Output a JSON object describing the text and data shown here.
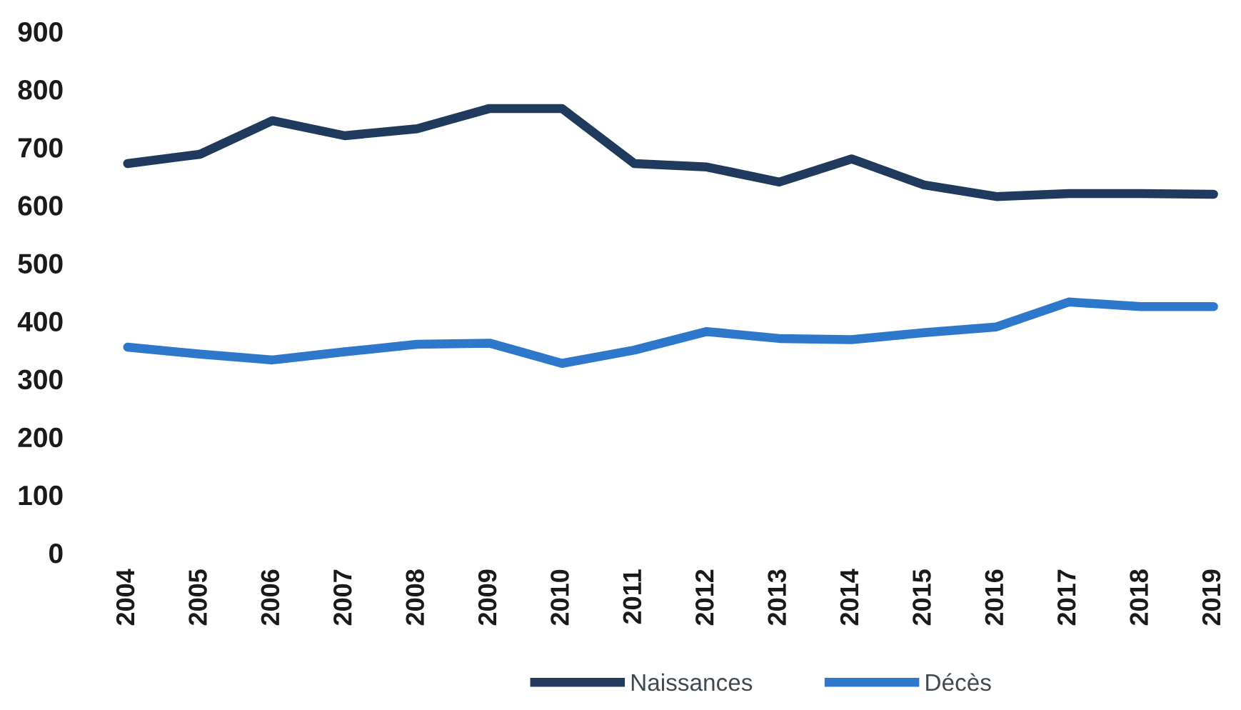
{
  "chart_data": {
    "type": "line",
    "categories": [
      "2004",
      "2005",
      "2006",
      "2007",
      "2008",
      "2009",
      "2010",
      "2011",
      "2012",
      "2013",
      "2014",
      "2015",
      "2016",
      "2017",
      "2018",
      "2019"
    ],
    "series": [
      {
        "name": "Naissances",
        "color": "#1f3a5c",
        "values": [
          672,
          688,
          746,
          720,
          732,
          767,
          767,
          672,
          666,
          640,
          680,
          635,
          615,
          620,
          620,
          619
        ]
      },
      {
        "name": "Décès",
        "color": "#2e78cc",
        "values": [
          355,
          343,
          333,
          347,
          360,
          362,
          327,
          350,
          382,
          370,
          368,
          380,
          390,
          433,
          425,
          425
        ]
      }
    ],
    "ylim": [
      0,
      900
    ],
    "yticks": [
      0,
      100,
      200,
      300,
      400,
      500,
      600,
      700,
      800,
      900
    ],
    "grid": false,
    "legend": "bottom"
  }
}
